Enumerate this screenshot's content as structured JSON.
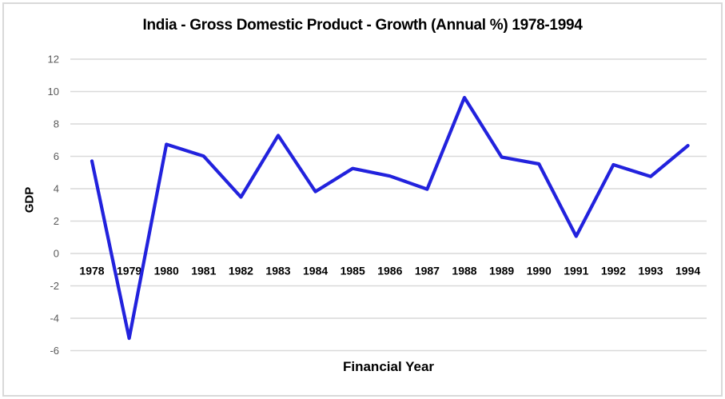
{
  "chart_data": {
    "type": "line",
    "title": "India - Gross Domestic Product - Growth (Annual %) 1978-1994",
    "xlabel": "Financial Year",
    "ylabel": "GDP",
    "categories": [
      "1978",
      "1979",
      "1980",
      "1981",
      "1982",
      "1983",
      "1984",
      "1985",
      "1986",
      "1987",
      "1988",
      "1989",
      "1990",
      "1991",
      "1992",
      "1993",
      "1994"
    ],
    "values": [
      5.71,
      -5.24,
      6.74,
      6.01,
      3.48,
      7.29,
      3.82,
      5.25,
      4.78,
      3.97,
      9.63,
      5.95,
      5.53,
      1.06,
      5.48,
      4.75,
      6.66
    ],
    "ylim": [
      -6,
      12
    ],
    "y_ticks": [
      -6,
      -4,
      -2,
      0,
      2,
      4,
      6,
      8,
      10,
      12
    ],
    "grid": "horizontal",
    "legend": "none",
    "colors": {
      "line": "#2222dd",
      "gridline": "#d9d9d9",
      "y_tick_label": "#595959",
      "axis_text": "#000000",
      "frame_border": "#d9d9d9",
      "background": "#ffffff"
    }
  }
}
